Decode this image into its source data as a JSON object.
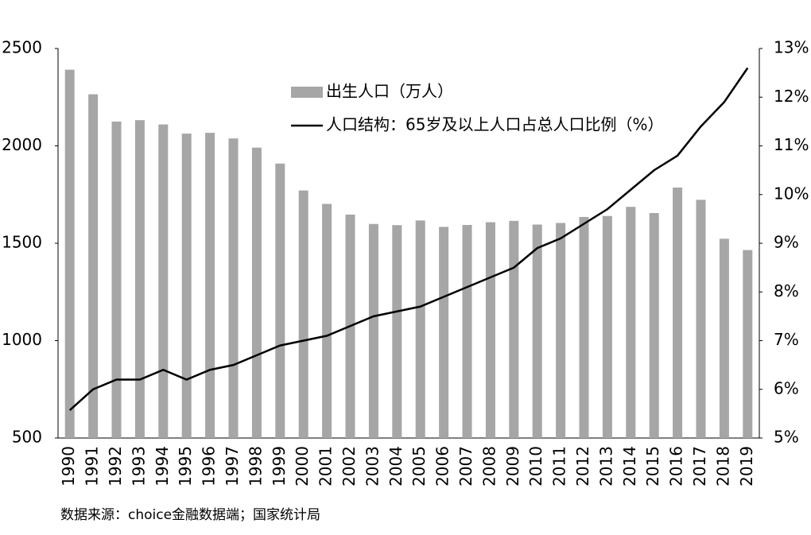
{
  "chart_data": {
    "type": "bar-line",
    "categories": [
      "1990",
      "1991",
      "1992",
      "1993",
      "1994",
      "1995",
      "1996",
      "1997",
      "1998",
      "1999",
      "2000",
      "2001",
      "2002",
      "2003",
      "2004",
      "2005",
      "2006",
      "2007",
      "2008",
      "2009",
      "2010",
      "2011",
      "2012",
      "2013",
      "2014",
      "2015",
      "2016",
      "2017",
      "2018",
      "2019"
    ],
    "series": [
      {
        "name": "出生人口（万人）",
        "type": "bar",
        "color": "#a6a6a6",
        "values": [
          2391,
          2265,
          2125,
          2132,
          2110,
          2063,
          2067,
          2038,
          1991,
          1909,
          1771,
          1702,
          1647,
          1599,
          1593,
          1617,
          1584,
          1594,
          1608,
          1615,
          1596,
          1604,
          1635,
          1640,
          1687,
          1655,
          1786,
          1723,
          1523,
          1465
        ]
      },
      {
        "name": "人口结构：65岁及以上人口占总人口比例（%）",
        "type": "line",
        "color": "#000000",
        "axis": "y2",
        "values": [
          5.57,
          6.0,
          6.2,
          6.2,
          6.4,
          6.2,
          6.4,
          6.5,
          6.7,
          6.9,
          7.0,
          7.1,
          7.3,
          7.5,
          7.6,
          7.7,
          7.9,
          8.1,
          8.3,
          8.5,
          8.9,
          9.1,
          9.4,
          9.7,
          10.1,
          10.5,
          10.8,
          11.4,
          11.9,
          12.6
        ]
      }
    ],
    "ylim": [
      500,
      2500
    ],
    "yticks": [
      500,
      1000,
      1500,
      2000,
      2500
    ],
    "y2lim": [
      5,
      13
    ],
    "y2ticks": [
      {
        "value": 5,
        "label": "5%"
      },
      {
        "value": 6,
        "label": "6%"
      },
      {
        "value": 7,
        "label": "7%"
      },
      {
        "value": 8,
        "label": "8%"
      },
      {
        "value": 9,
        "label": "9%"
      },
      {
        "value": 10,
        "label": "10%"
      },
      {
        "value": 11,
        "label": "11%"
      },
      {
        "value": 12,
        "label": "12%"
      },
      {
        "value": 13,
        "label": "13%"
      }
    ],
    "grid": false,
    "legend": "top",
    "source": "数据来源：choice金融数据端；国家统计局"
  }
}
